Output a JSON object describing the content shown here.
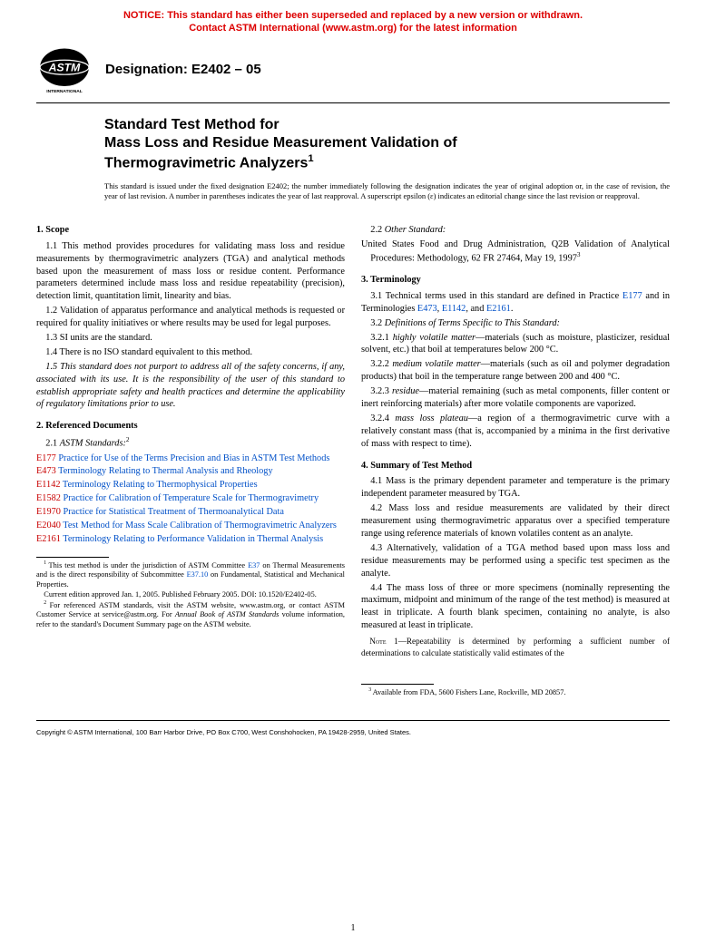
{
  "notice": {
    "line1": "NOTICE: This standard has either been superseded and replaced by a new version or withdrawn.",
    "line2": "Contact ASTM International (www.astm.org) for the latest information"
  },
  "designation": {
    "label": "Designation: E2402 – 05"
  },
  "title": {
    "line1": "Standard Test Method for",
    "line2": "Mass Loss and Residue Measurement Validation of",
    "line3": "Thermogravimetric Analyzers",
    "sup": "1"
  },
  "issuance": "This standard is issued under the fixed designation E2402; the number immediately following the designation indicates the year of original adoption or, in the case of revision, the year of last revision. A number in parentheses indicates the year of last reapproval. A superscript epsilon (ε) indicates an editorial change since the last revision or reapproval.",
  "left": {
    "s1_head": "1. Scope",
    "s1_1": "1.1 This method provides procedures for validating mass loss and residue measurements by thermogravimetric analyzers (TGA) and analytical methods based upon the measurement of mass loss or residue content. Performance parameters determined include mass loss and residue repeatability (precision), detection limit, quantitation limit, linearity and bias.",
    "s1_2": "1.2 Validation of apparatus performance and analytical methods is requested or required for quality initiatives or where results may be used for legal purposes.",
    "s1_3": "1.3 SI units are the standard.",
    "s1_4": "1.4 There is no ISO standard equivalent to this method.",
    "s1_5": "1.5 This standard does not purport to address all of the safety concerns, if any, associated with its use. It is the responsibility of the user of this standard to establish appropriate safety and health practices and determine the applicability of regulatory limitations prior to use.",
    "s2_head": "2. Referenced Documents",
    "s2_1_label": "2.1 ",
    "s2_1_ital": "ASTM Standards:",
    "s2_1_sup": "2",
    "refs": [
      {
        "code": "E177",
        "text": "Practice for Use of the Terms Precision and Bias in ASTM Test Methods"
      },
      {
        "code": "E473",
        "text": "Terminology Relating to Thermal Analysis and Rheology"
      },
      {
        "code": "E1142",
        "text": "Terminology Relating to Thermophysical Properties"
      },
      {
        "code": "E1582",
        "text": "Practice for Calibration of Temperature Scale for Thermogravimetry"
      },
      {
        "code": "E1970",
        "text": "Practice for Statistical Treatment of Thermoanalytical Data"
      },
      {
        "code": "E2040",
        "text": "Test Method for Mass Scale Calibration of Thermogravimetric Analyzers"
      },
      {
        "code": "E2161",
        "text": "Terminology Relating to Performance Validation in Thermal Analysis"
      }
    ],
    "fn1_a": "This test method is under the jurisdiction of ASTM Committee ",
    "fn1_link1": "E37",
    "fn1_b": " on Thermal Measurements and is the direct responsibility of Subcommittee ",
    "fn1_link2": "E37.10",
    "fn1_c": " on Fundamental, Statistical and Mechanical Properties.",
    "fn1_d": "Current edition approved Jan. 1, 2005. Published February 2005. DOI: 10.1520/E2402-05.",
    "fn2_a": "For referenced ASTM standards, visit the ASTM website, www.astm.org, or contact ASTM Customer Service at service@astm.org. For ",
    "fn2_ital": "Annual Book of ASTM Standards",
    "fn2_b": " volume information, refer to the standard's Document Summary page on the ASTM website."
  },
  "right": {
    "s2_2_label": "2.2 ",
    "s2_2_ital": "Other Standard:",
    "s2_2_body": "United States Food and Drug Administration, Q2B Validation of Analytical Procedures: Methodology, 62 FR 27464, May 19, 1997",
    "s2_2_sup": "3",
    "s3_head": "3. Terminology",
    "s3_1_a": "3.1 Technical terms used in this standard are defined in Practice ",
    "s3_1_l1": "E177",
    "s3_1_b": " and in Terminologies ",
    "s3_1_l2": "E473",
    "s3_1_c": ", ",
    "s3_1_l3": "E1142",
    "s3_1_d": ", and ",
    "s3_1_l4": "E2161",
    "s3_1_e": ".",
    "s3_2_label": "3.2 ",
    "s3_2_ital": "Definitions of Terms Specific to This Standard:",
    "s3_2_1_label": "3.2.1 ",
    "s3_2_1_term": "highly volatile matter",
    "s3_2_1_def": "—materials (such as moisture, plasticizer, residual solvent, etc.) that boil at temperatures below 200 °C.",
    "s3_2_2_label": "3.2.2 ",
    "s3_2_2_term": "medium volatile matter",
    "s3_2_2_def": "—materials (such as oil and polymer degradation products) that boil in the temperature range between 200 and 400 °C.",
    "s3_2_3_label": "3.2.3 ",
    "s3_2_3_term": "residue",
    "s3_2_3_def": "—material remaining (such as metal components, filler content or inert reinforcing materials) after more volatile components are vaporized.",
    "s3_2_4_label": "3.2.4 ",
    "s3_2_4_term": "mass loss plateau",
    "s3_2_4_def": "—a region of a thermogravimetric curve with a relatively constant mass (that is, accompanied by a minima in the first derivative of mass with respect to time).",
    "s4_head": "4. Summary of Test Method",
    "s4_1": "4.1 Mass is the primary dependent parameter and temperature is the primary independent parameter measured by TGA.",
    "s4_2": "4.2 Mass loss and residue measurements are validated by their direct measurement using thermogravimetric apparatus over a specified temperature range using reference materials of known volatiles content as an analyte.",
    "s4_3": "4.3 Alternatively, validation of a TGA method based upon mass loss and residue measurements may be performed using a specific test specimen as the analyte.",
    "s4_4": "4.4 The mass loss of three or more specimens (nominally representing the maximum, midpoint and minimum of the range of the test method) is measured at least in triplicate. A fourth blank specimen, containing no analyte, is also measured at least in triplicate.",
    "note1_label": "Note",
    "note1_text": " 1—Repeatability is determined by performing a sufficient number of determinations to calculate statistically valid estimates of the",
    "fn3": "Available from FDA, 5600 Fishers Lane, Rockville, MD 20857."
  },
  "copyright": "Copyright © ASTM International, 100 Barr Harbor Drive, PO Box C700, West Conshohocken, PA 19428-2959, United States.",
  "page_num": "1",
  "logo_label": "INTERNATIONAL"
}
